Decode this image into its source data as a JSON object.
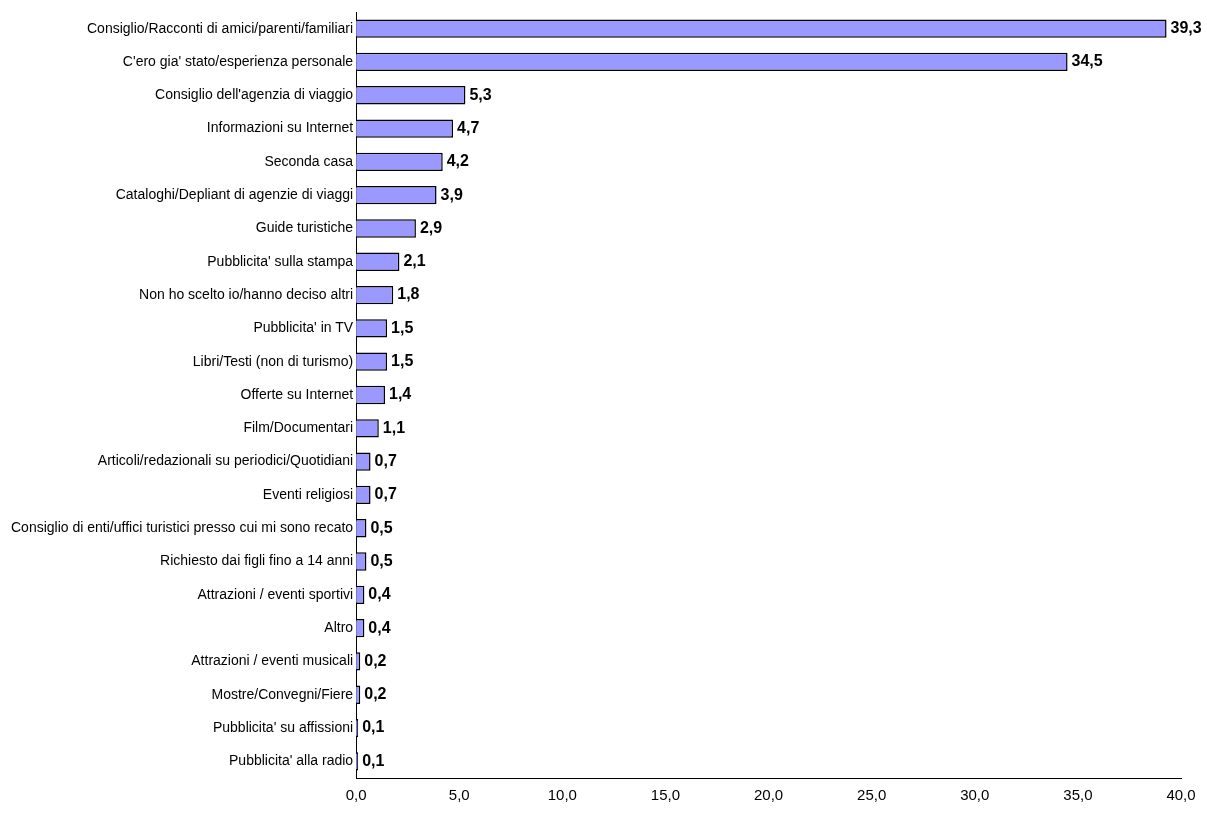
{
  "chart_data": {
    "type": "bar",
    "orientation": "horizontal",
    "color": "#9999ff",
    "categories": [
      "Consiglio/Racconti di amici/parenti/familiari",
      "C'ero gia' stato/esperienza personale",
      "Consiglio dell'agenzia di viaggio",
      "Informazioni su Internet",
      "Seconda casa",
      "Cataloghi/Depliant di agenzie di viaggi",
      "Guide turistiche",
      "Pubblicita' sulla stampa",
      "Non ho scelto io/hanno deciso altri",
      "Pubblicita' in TV",
      "Libri/Testi (non di turismo)",
      "Offerte su Internet",
      "Film/Documentari",
      "Articoli/redazionali su periodici/Quotidiani",
      "Eventi religiosi",
      "Consiglio di enti/uffici turistici presso cui mi sono recato",
      "Richiesto dai figli fino a 14 anni",
      "Attrazioni / eventi sportivi",
      "Altro",
      "Attrazioni / eventi musicali",
      "Mostre/Convegni/Fiere",
      "Pubblicita' su affissioni",
      "Pubblicita' alla radio"
    ],
    "values": [
      39.3,
      34.5,
      5.3,
      4.7,
      4.2,
      3.9,
      2.9,
      2.1,
      1.8,
      1.5,
      1.5,
      1.4,
      1.1,
      0.7,
      0.7,
      0.5,
      0.5,
      0.4,
      0.4,
      0.2,
      0.2,
      0.1,
      0.1
    ],
    "value_labels": [
      "39,3",
      "34,5",
      "5,3",
      "4,7",
      "4,2",
      "3,9",
      "2,9",
      "2,1",
      "1,8",
      "1,5",
      "1,5",
      "1,4",
      "1,1",
      "0,7",
      "0,7",
      "0,5",
      "0,5",
      "0,4",
      "0,4",
      "0,2",
      "0,2",
      "0,1",
      "0,1"
    ],
    "xlim": [
      0,
      40
    ],
    "xticks": [
      {
        "value": 0,
        "label": "0,0"
      },
      {
        "value": 5,
        "label": "5,0"
      },
      {
        "value": 10,
        "label": "10,0"
      },
      {
        "value": 15,
        "label": "15,0"
      },
      {
        "value": 20,
        "label": "20,0"
      },
      {
        "value": 25,
        "label": "25,0"
      },
      {
        "value": 30,
        "label": "30,0"
      },
      {
        "value": 35,
        "label": "35,0"
      },
      {
        "value": 40,
        "label": "40,0"
      }
    ],
    "grid": false,
    "legend": false
  }
}
